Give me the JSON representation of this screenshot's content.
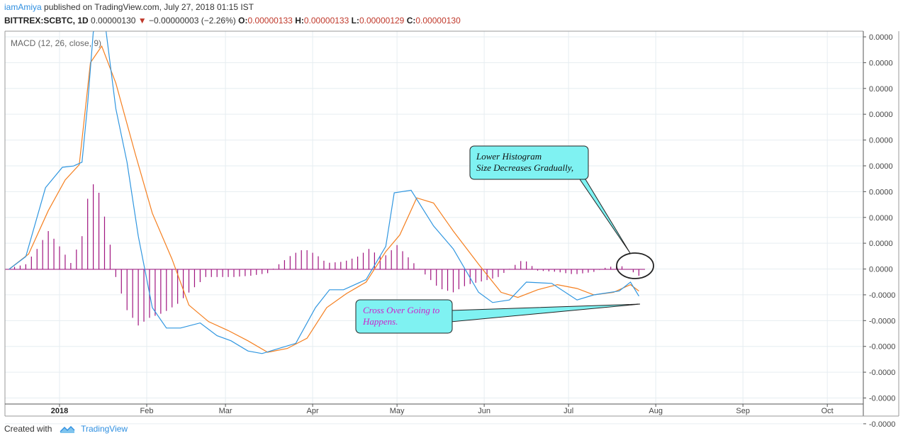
{
  "header": {
    "author": "iamAmiya",
    "published_text": "published on TradingView.com, July 27, 2018 01:15 IST",
    "symbol": "BITTREX:SCBTC, 1D",
    "price": "0.00000130",
    "change_arrow": "▼",
    "change": "−0.00000003 (−2.26%)",
    "o_label": "O:",
    "o_value": "0.00000133",
    "h_label": "H:",
    "h_value": "0.00000133",
    "l_label": "L:",
    "l_value": "0.00000129",
    "c_label": "C:",
    "c_value": "0.00000130"
  },
  "indicator_label": "MACD (12, 26, close, 9)",
  "annotations": {
    "histogram_note_line1": "Lower Histogram",
    "histogram_note_line2": "Size Decreases Gradually,",
    "cross_note_line1": "Cross Over Going to",
    "cross_note_line2": "Happens."
  },
  "footer": {
    "created_with": "Created with",
    "brand": "TradingView"
  },
  "colors": {
    "macd_line": "#2f96e0",
    "signal_line": "#f57f1f",
    "histogram": "#a0157f",
    "callout_fill": "#7ff2f2",
    "grid": "#e6edf1"
  },
  "chart_data": {
    "type": "line",
    "title": "MACD (12, 26, close, 9)",
    "x_tick_labels": [
      "2018",
      "Feb",
      "Mar",
      "Apr",
      "May",
      "Jun",
      "Jul",
      "Aug",
      "Sep",
      "Oct"
    ],
    "y_tick_labels": [
      "0.0000",
      "0.0000",
      "0.0000",
      "0.0000",
      "0.0000",
      "0.0000",
      "0.0000",
      "0.0000",
      "0.0000",
      "0.0000",
      "-0.0000",
      "-0.0000",
      "-0.0000",
      "-0.0000",
      "-0.0000",
      "-0.0000"
    ],
    "grid": true,
    "x_unit": "date",
    "y_unit": "relative MACD units (axis prints only rounded 0.0000 values)",
    "series": [
      {
        "role": "macd",
        "points": [
          [
            "2017-12-14",
            0
          ],
          [
            "2017-12-20",
            0.5
          ],
          [
            "2017-12-27",
            3.2
          ],
          [
            "2018-01-02",
            4.0
          ],
          [
            "2018-01-06",
            4.05
          ],
          [
            "2018-01-09",
            4.2
          ],
          [
            "2018-01-11",
            6.5
          ],
          [
            "2018-01-13",
            9.3
          ],
          [
            "2018-01-17",
            9.8
          ],
          [
            "2018-01-21",
            6.3
          ],
          [
            "2018-01-25",
            4.2
          ],
          [
            "2018-01-29",
            1.3
          ],
          [
            "2018-02-03",
            -1.5
          ],
          [
            "2018-02-08",
            -2.3
          ],
          [
            "2018-02-13",
            -2.3
          ],
          [
            "2018-02-20",
            -2.1
          ],
          [
            "2018-02-26",
            -2.6
          ],
          [
            "2018-03-03",
            -2.8
          ],
          [
            "2018-03-09",
            -3.2
          ],
          [
            "2018-03-14",
            -3.3
          ],
          [
            "2018-03-20",
            -3.1
          ],
          [
            "2018-03-26",
            -2.9
          ],
          [
            "2018-04-02",
            -1.5
          ],
          [
            "2018-04-07",
            -0.8
          ],
          [
            "2018-04-12",
            -0.8
          ],
          [
            "2018-04-20",
            -0.4
          ],
          [
            "2018-04-27",
            0.9
          ],
          [
            "2018-04-30",
            3.0
          ],
          [
            "2018-05-06",
            3.1
          ],
          [
            "2018-05-14",
            1.7
          ],
          [
            "2018-05-21",
            0.8
          ],
          [
            "2018-05-30",
            -0.9
          ],
          [
            "2018-06-04",
            -1.3
          ],
          [
            "2018-06-10",
            -1.2
          ],
          [
            "2018-06-16",
            -0.5
          ],
          [
            "2018-06-25",
            -0.55
          ],
          [
            "2018-07-04",
            -1.2
          ],
          [
            "2018-07-10",
            -1.0
          ],
          [
            "2018-07-19",
            -0.85
          ],
          [
            "2018-07-23",
            -0.5
          ],
          [
            "2018-07-26",
            -1.05
          ]
        ]
      },
      {
        "role": "signal",
        "points": [
          [
            "2017-12-14",
            0
          ],
          [
            "2017-12-21",
            0.6
          ],
          [
            "2017-12-28",
            2.3
          ],
          [
            "2018-01-03",
            3.5
          ],
          [
            "2018-01-08",
            4.1
          ],
          [
            "2018-01-12",
            8.1
          ],
          [
            "2018-01-16",
            8.75
          ],
          [
            "2018-01-21",
            7.3
          ],
          [
            "2018-01-28",
            4.5
          ],
          [
            "2018-02-03",
            2.2
          ],
          [
            "2018-02-10",
            0.4
          ],
          [
            "2018-02-16",
            -1.4
          ],
          [
            "2018-02-23",
            -2.05
          ],
          [
            "2018-03-02",
            -2.4
          ],
          [
            "2018-03-09",
            -2.8
          ],
          [
            "2018-03-16",
            -3.25
          ],
          [
            "2018-03-23",
            -3.1
          ],
          [
            "2018-03-30",
            -2.7
          ],
          [
            "2018-04-06",
            -1.5
          ],
          [
            "2018-04-13",
            -0.95
          ],
          [
            "2018-04-20",
            -0.5
          ],
          [
            "2018-04-27",
            0.7
          ],
          [
            "2018-05-02",
            1.35
          ],
          [
            "2018-05-08",
            2.8
          ],
          [
            "2018-05-14",
            2.6
          ],
          [
            "2018-05-21",
            1.5
          ],
          [
            "2018-05-30",
            0.2
          ],
          [
            "2018-06-07",
            -0.9
          ],
          [
            "2018-06-13",
            -1.1
          ],
          [
            "2018-06-20",
            -0.8
          ],
          [
            "2018-06-27",
            -0.6
          ],
          [
            "2018-07-04",
            -0.75
          ],
          [
            "2018-07-10",
            -1.0
          ],
          [
            "2018-07-17",
            -0.9
          ],
          [
            "2018-07-23",
            -0.6
          ],
          [
            "2018-07-26",
            -0.85
          ]
        ]
      }
    ],
    "histogram": {
      "role": "macd_histogram",
      "points": [
        [
          "2017-12-16",
          0.1
        ],
        [
          "2017-12-20",
          0.2
        ],
        [
          "2017-12-24",
          0.8
        ],
        [
          "2017-12-28",
          1.5
        ],
        [
          "2018-01-01",
          0.9
        ],
        [
          "2018-01-05",
          0.25
        ],
        [
          "2018-01-09",
          1.3
        ],
        [
          "2018-01-12",
          3.5
        ],
        [
          "2018-01-15",
          3.0
        ],
        [
          "2018-01-18",
          1.6
        ],
        [
          "2018-01-21",
          -0.3
        ],
        [
          "2018-01-25",
          -1.6
        ],
        [
          "2018-01-29",
          -2.2
        ],
        [
          "2018-02-02",
          -1.9
        ],
        [
          "2018-02-07",
          -1.7
        ],
        [
          "2018-02-12",
          -1.35
        ],
        [
          "2018-02-17",
          -0.8
        ],
        [
          "2018-02-22",
          -0.3
        ],
        [
          "2018-02-27",
          -0.3
        ],
        [
          "2018-03-04",
          -0.3
        ],
        [
          "2018-03-10",
          -0.25
        ],
        [
          "2018-03-16",
          -0.15
        ],
        [
          "2018-03-20",
          0.2
        ],
        [
          "2018-03-25",
          0.6
        ],
        [
          "2018-03-29",
          0.8
        ],
        [
          "2018-04-02",
          0.6
        ],
        [
          "2018-04-06",
          0.25
        ],
        [
          "2018-04-12",
          0.3
        ],
        [
          "2018-04-17",
          0.5
        ],
        [
          "2018-04-21",
          0.8
        ],
        [
          "2018-04-26",
          0.45
        ],
        [
          "2018-05-01",
          0.95
        ],
        [
          "2018-05-06",
          0.35
        ],
        [
          "2018-05-11",
          -0.2
        ],
        [
          "2018-05-16",
          -0.75
        ],
        [
          "2018-05-21",
          -0.9
        ],
        [
          "2018-05-26",
          -0.6
        ],
        [
          "2018-06-01",
          -0.45
        ],
        [
          "2018-06-06",
          -0.3
        ],
        [
          "2018-06-11",
          0.1
        ],
        [
          "2018-06-15",
          0.4
        ],
        [
          "2018-06-20",
          -0.05
        ],
        [
          "2018-06-27",
          -0.1
        ],
        [
          "2018-07-03",
          -0.2
        ],
        [
          "2018-07-10",
          -0.1
        ],
        [
          "2018-07-15",
          0.1
        ],
        [
          "2018-07-20",
          0.12
        ],
        [
          "2018-07-23",
          -0.05
        ],
        [
          "2018-07-26",
          -0.25
        ]
      ]
    }
  }
}
